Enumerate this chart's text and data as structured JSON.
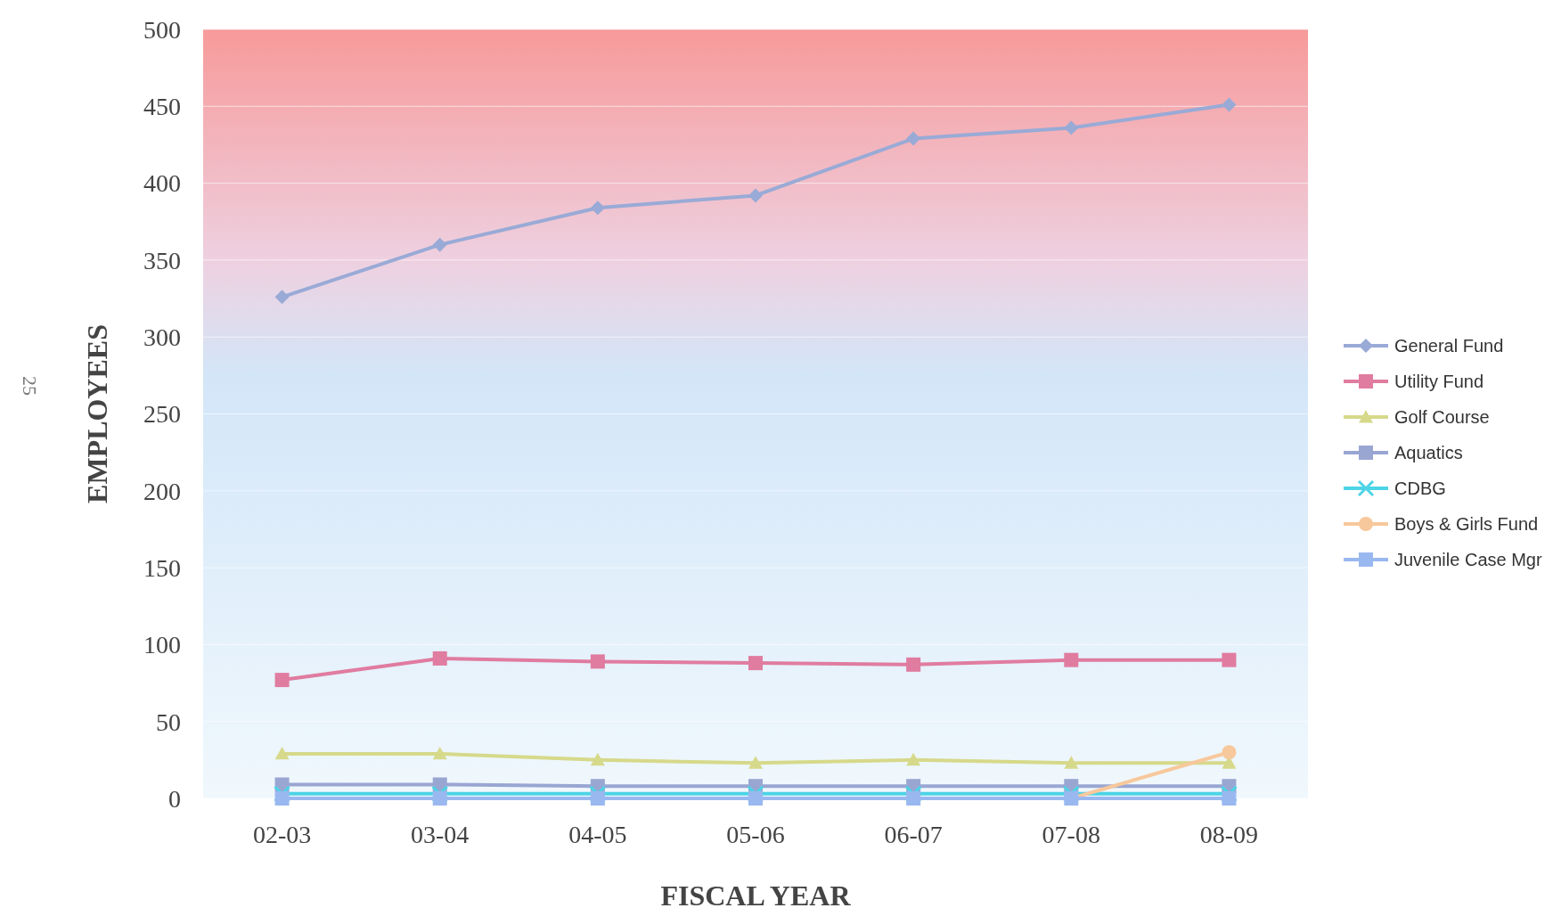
{
  "chart_data": {
    "type": "line",
    "xlabel": "FISCAL YEAR",
    "ylabel": "EMPLOYEES",
    "categories": [
      "02-03",
      "03-04",
      "04-05",
      "05-06",
      "06-07",
      "07-08",
      "08-09"
    ],
    "series": [
      {
        "name": "General Fund",
        "color": "#99aad6",
        "marker": "diamond",
        "values": [
          326,
          360,
          384,
          392,
          429,
          436,
          451
        ]
      },
      {
        "name": "Utility Fund",
        "color": "#e07ca0",
        "marker": "square",
        "values": [
          77,
          91,
          89,
          88,
          87,
          90,
          90
        ]
      },
      {
        "name": "Golf Course",
        "color": "#d6d98a",
        "marker": "triangle",
        "values": [
          29,
          29,
          25,
          23,
          25,
          23,
          23
        ]
      },
      {
        "name": "Aquatics",
        "color": "#9aa6d2",
        "marker": "square",
        "values": [
          9,
          9,
          8,
          8,
          8,
          8,
          8
        ]
      },
      {
        "name": "CDBG",
        "color": "#4dd4e6",
        "marker": "cross",
        "values": [
          3,
          3,
          3,
          3,
          3,
          3,
          3
        ]
      },
      {
        "name": "Boys & Girls Fund",
        "color": "#f7c89c",
        "marker": "circle",
        "values": [
          null,
          null,
          null,
          null,
          null,
          0,
          30
        ]
      },
      {
        "name": "Juvenile Case Mgr",
        "color": "#9ab8f0",
        "marker": "square",
        "values": [
          0,
          0,
          0,
          0,
          0,
          0,
          0
        ]
      }
    ],
    "ylim": [
      0,
      500
    ],
    "yticks": [
      0,
      50,
      100,
      150,
      200,
      250,
      300,
      350,
      400,
      450,
      500
    ],
    "grid": "y",
    "legend": "right",
    "annotations": [
      "25"
    ]
  }
}
